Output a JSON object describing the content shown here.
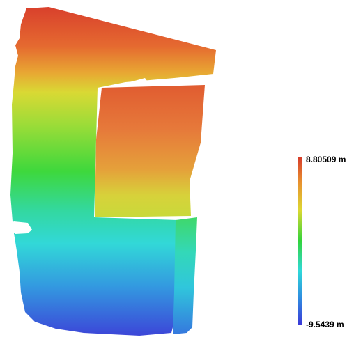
{
  "map": {
    "colors": {
      "high": "#d63a2a",
      "orange": "#e8902f",
      "yellow": "#dcd832",
      "green": "#33d43a",
      "cyan": "#2fd9d9",
      "blue": "#2f8de0",
      "low": "#3a3ad8"
    }
  },
  "legend": {
    "max_label": "8.80509 m",
    "min_label": "-9.5439 m"
  }
}
